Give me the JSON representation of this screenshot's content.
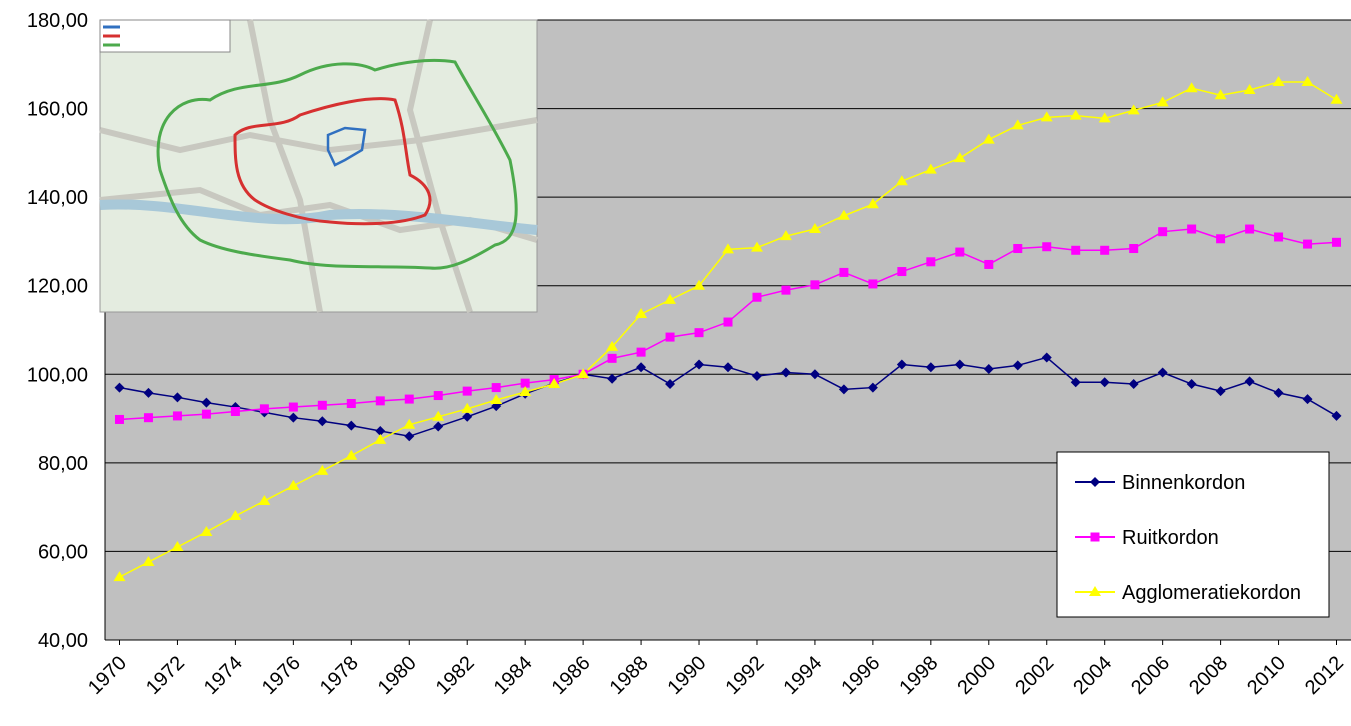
{
  "chart_data": {
    "type": "line",
    "x": [
      1970,
      1971,
      1972,
      1973,
      1974,
      1975,
      1976,
      1977,
      1978,
      1979,
      1980,
      1981,
      1982,
      1983,
      1984,
      1985,
      1986,
      1987,
      1988,
      1989,
      1990,
      1991,
      1992,
      1993,
      1994,
      1995,
      1996,
      1997,
      1998,
      1999,
      2000,
      2001,
      2002,
      2003,
      2004,
      2005,
      2006,
      2007,
      2008,
      2009,
      2010,
      2011,
      2012
    ],
    "xlim": [
      1969.5,
      2012.5
    ],
    "xticks": [
      1970,
      1972,
      1974,
      1976,
      1978,
      1980,
      1982,
      1984,
      1986,
      1988,
      1990,
      1992,
      1994,
      1996,
      1998,
      2000,
      2002,
      2004,
      2006,
      2008,
      2010,
      2012
    ],
    "ylim": [
      40,
      180
    ],
    "yticks": [
      {
        "value": 40,
        "label": "40,00"
      },
      {
        "value": 60,
        "label": "60,00"
      },
      {
        "value": 80,
        "label": "80,00"
      },
      {
        "value": 100,
        "label": "100,00"
      },
      {
        "value": 120,
        "label": "120,00"
      },
      {
        "value": 140,
        "label": "140,00"
      },
      {
        "value": 160,
        "label": "160,00"
      },
      {
        "value": 180,
        "label": "180,00"
      }
    ],
    "grid": true,
    "legend": "lower-right",
    "series": [
      {
        "name": "Binnenkordon",
        "color": "#000080",
        "marker": "diamond",
        "values": [
          97,
          95.8,
          94.8,
          93.6,
          92.6,
          91.4,
          90.2,
          89.4,
          88.4,
          87.2,
          86,
          88.2,
          90.4,
          92.8,
          95.6,
          98,
          100,
          99,
          101.6,
          97.8,
          102.2,
          101.6,
          99.6,
          100.4,
          100,
          96.6,
          97,
          102.2,
          101.6,
          102.2,
          101.2,
          102,
          103.8,
          98.2,
          98.2,
          97.8,
          100.4,
          97.8,
          96.2,
          98.4,
          95.8,
          94.4,
          90.6
        ]
      },
      {
        "name": "Ruitkordon",
        "color": "#ff00ff",
        "marker": "square",
        "values": [
          89.8,
          90.2,
          90.6,
          91,
          91.6,
          92.2,
          92.6,
          93,
          93.4,
          94,
          94.4,
          95.2,
          96.2,
          97,
          98,
          98.8,
          100,
          103.6,
          105,
          108.4,
          109.4,
          111.8,
          117.4,
          119,
          120.2,
          123,
          120.4,
          123.2,
          125.4,
          127.6,
          124.8,
          128.4,
          128.8,
          128,
          128,
          128.4,
          132.2,
          132.8,
          130.6,
          132.8,
          131,
          129.4,
          129.8
        ]
      },
      {
        "name": "Agglomeratiekordon",
        "color": "#ffff00",
        "marker": "triangle",
        "values": [
          54.2,
          57.6,
          61,
          64.4,
          68,
          71.4,
          74.8,
          78.2,
          81.6,
          85.2,
          88.6,
          90.4,
          92.2,
          94.2,
          96,
          97.8,
          100,
          106.2,
          113.6,
          116.8,
          120,
          128.2,
          128.6,
          131.2,
          132.8,
          135.8,
          138.4,
          143.6,
          146.2,
          148.8,
          153,
          156.2,
          158,
          158.4,
          157.8,
          159.6,
          161.4,
          164.6,
          163,
          164.2,
          166,
          166,
          162
        ]
      }
    ]
  }
}
